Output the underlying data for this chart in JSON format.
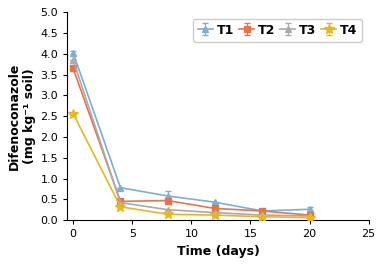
{
  "title": "",
  "xlabel": "Time (days)",
  "ylabel": "Difenoconazole (mg kg⁻¹ soil)",
  "xlim": [
    -0.5,
    25
  ],
  "ylim": [
    0.0,
    5.0
  ],
  "yticks": [
    0.0,
    0.5,
    1.0,
    1.5,
    2.0,
    2.5,
    3.0,
    3.5,
    4.0,
    4.5,
    5.0
  ],
  "xticks": [
    0,
    5,
    10,
    15,
    20,
    25
  ],
  "series": [
    {
      "label": "T1",
      "color": "#7BAFD4",
      "marker": "^",
      "markersize": 5,
      "x": [
        0,
        4,
        8,
        12,
        16,
        20
      ],
      "y": [
        4.02,
        0.78,
        0.58,
        0.43,
        0.22,
        0.26
      ],
      "yerr": [
        0.05,
        0.0,
        0.12,
        0.0,
        0.0,
        0.05
      ]
    },
    {
      "label": "T2",
      "color": "#E8734A",
      "marker": "s",
      "markersize": 5,
      "x": [
        0,
        4,
        8,
        12,
        16,
        20
      ],
      "y": [
        3.65,
        0.45,
        0.47,
        0.28,
        0.22,
        0.12
      ],
      "yerr": [
        0.0,
        0.0,
        0.05,
        0.0,
        0.04,
        0.0
      ]
    },
    {
      "label": "T3",
      "color": "#AAAAAA",
      "marker": "^",
      "markersize": 5,
      "x": [
        0,
        4,
        8,
        12,
        16,
        20
      ],
      "y": [
        3.85,
        0.42,
        0.25,
        0.18,
        0.12,
        0.1
      ],
      "yerr": [
        0.0,
        0.0,
        0.0,
        0.0,
        0.0,
        0.0
      ]
    },
    {
      "label": "T4",
      "color": "#E6B820",
      "marker": "*",
      "markersize": 7,
      "x": [
        0,
        4,
        8,
        12,
        16,
        20
      ],
      "y": [
        2.56,
        0.32,
        0.14,
        0.12,
        0.08,
        0.06
      ],
      "yerr": [
        0.0,
        0.0,
        0.0,
        0.0,
        0.0,
        0.0
      ]
    }
  ],
  "legend_fontsize": 9,
  "axis_label_fontsize": 9,
  "tick_fontsize": 8
}
